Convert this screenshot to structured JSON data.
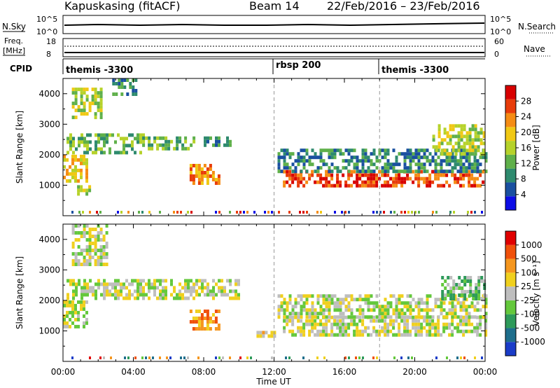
{
  "header": {
    "station": "Kapuskasing (fitACF)",
    "beam": "Beam 14",
    "dates": "22/Feb/2016 – 23/Feb/2016"
  },
  "strip": {
    "nsky_label": "N.Sky",
    "nsky_ticks": [
      "10^5",
      "10^0"
    ],
    "nsearch_label": "N.Search",
    "nsearch_ticks": [
      "10^5",
      "10^0"
    ],
    "freq_label_1": "Freq.",
    "freq_label_2": "[MHz]",
    "freq_ticks": [
      "18",
      "8"
    ],
    "nave_label": "Nave",
    "nave_ticks": [
      "60",
      "0"
    ],
    "cpid_label": "CPID",
    "cpid_segments": [
      "themis -3300",
      "rbsp 200",
      "themis -3300"
    ]
  },
  "chart_data": [
    {
      "type": "heatmap",
      "title": "",
      "xlabel": "Time UT",
      "ylabel": "Slant Range [km]",
      "xlim": [
        0,
        24
      ],
      "ylim": [
        0,
        4500
      ],
      "x_ticks": [
        "00:00",
        "04:00",
        "08:00",
        "12:00",
        "16:00",
        "20:00",
        "00:00"
      ],
      "y_ticks": [
        "1000",
        "2000",
        "3000",
        "4000"
      ],
      "colorbar_label": "Power [dB]",
      "colorbar_ticks": [
        "28",
        "24",
        "20",
        "16",
        "12",
        "8",
        "4"
      ],
      "colors": [
        "#0d0de6",
        "#1a50a0",
        "#2e8a6e",
        "#5fb04a",
        "#b6d22a",
        "#f0c814",
        "#f58c14",
        "#e83c0a",
        "#d80000"
      ],
      "echo_regions": [
        {
          "t0": 0.0,
          "t1": 1.3,
          "r0": 1100,
          "r1": 2000,
          "level": 5
        },
        {
          "t0": 0.2,
          "t1": 4.5,
          "r0": 2100,
          "r1": 2700,
          "level": 3
        },
        {
          "t0": 0.5,
          "t1": 2.2,
          "r0": 3200,
          "r1": 4200,
          "level": 4
        },
        {
          "t0": 2.8,
          "t1": 4.2,
          "r0": 4000,
          "r1": 4500,
          "level": 2
        },
        {
          "t0": 0.8,
          "t1": 1.5,
          "r0": 700,
          "r1": 1000,
          "level": 4
        },
        {
          "t0": 4.5,
          "t1": 7.5,
          "r0": 2200,
          "r1": 2600,
          "level": 3
        },
        {
          "t0": 7.2,
          "t1": 8.8,
          "r0": 1100,
          "r1": 1700,
          "level": 6
        },
        {
          "t0": 8.0,
          "t1": 9.5,
          "r0": 2300,
          "r1": 2600,
          "level": 2
        },
        {
          "t0": 12.5,
          "t1": 24.0,
          "r0": 1000,
          "r1": 1500,
          "level": 7
        },
        {
          "t0": 12.2,
          "t1": 24.0,
          "r0": 1500,
          "r1": 2200,
          "level": 2
        },
        {
          "t0": 21.0,
          "t1": 24.0,
          "r0": 2000,
          "r1": 3000,
          "level": 4
        }
      ]
    },
    {
      "type": "heatmap",
      "title": "",
      "xlabel": "Time UT",
      "ylabel": "Slant Range [km]",
      "xlim": [
        0,
        24
      ],
      "ylim": [
        0,
        4500
      ],
      "x_ticks": [
        "00:00",
        "04:00",
        "08:00",
        "12:00",
        "16:00",
        "20:00",
        "00:00"
      ],
      "y_ticks": [
        "1000",
        "2000",
        "3000",
        "4000"
      ],
      "colorbar_label": "Velocity [m s⁻¹]",
      "colorbar_ticks": [
        "1000",
        "500",
        "100",
        "25",
        "-25",
        "-100",
        "-500",
        "-1000"
      ],
      "colors": [
        "#1a3cc8",
        "#1e6e8c",
        "#2e9a5a",
        "#64c83c",
        "#bebebe",
        "#f0d01e",
        "#f5961e",
        "#f0500a",
        "#e00000"
      ],
      "echo_regions": [
        {
          "t0": 0.0,
          "t1": 1.3,
          "r0": 1100,
          "r1": 2000,
          "level": 4
        },
        {
          "t0": 0.2,
          "t1": 10.0,
          "r0": 2100,
          "r1": 2700,
          "level": 4
        },
        {
          "t0": 0.5,
          "t1": 2.5,
          "r0": 3200,
          "r1": 4500,
          "level": 4
        },
        {
          "t0": 7.2,
          "t1": 8.8,
          "r0": 1100,
          "r1": 1700,
          "level": 6
        },
        {
          "t0": 11.0,
          "t1": 12.0,
          "r0": 800,
          "r1": 1000,
          "level": 5
        },
        {
          "t0": 12.5,
          "t1": 24.0,
          "r0": 900,
          "r1": 1500,
          "level": 4
        },
        {
          "t0": 12.2,
          "t1": 24.0,
          "r0": 1500,
          "r1": 2200,
          "level": 4
        },
        {
          "t0": 21.5,
          "t1": 24.0,
          "r0": 2000,
          "r1": 2800,
          "level": 3
        }
      ]
    }
  ]
}
